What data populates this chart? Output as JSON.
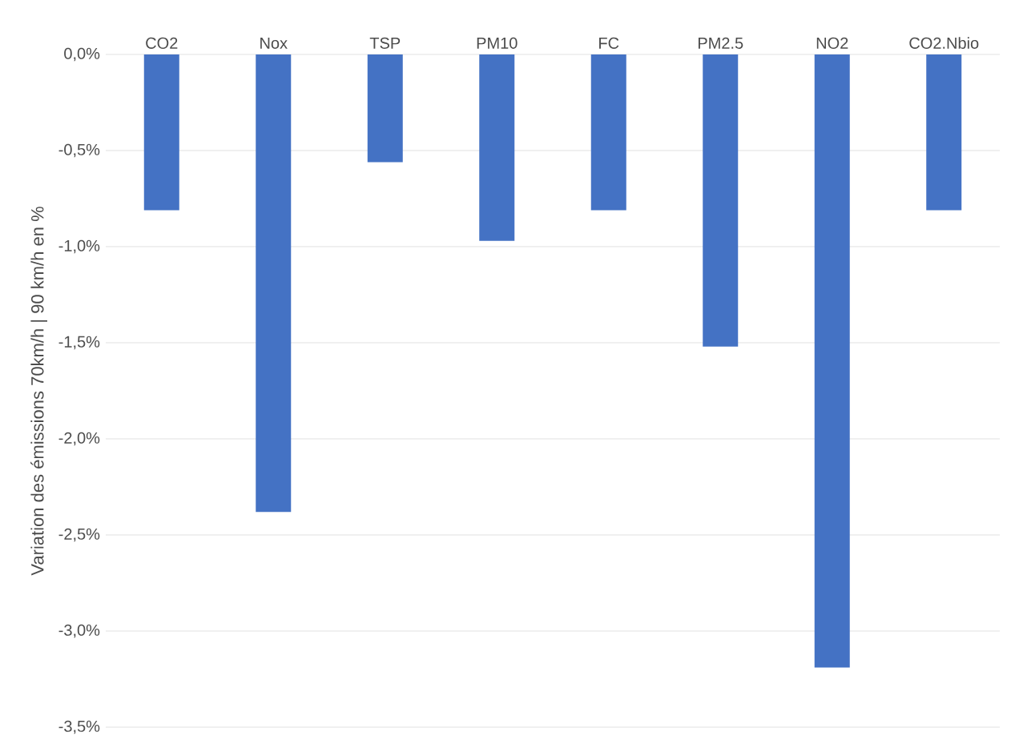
{
  "chart_data": {
    "type": "bar",
    "ylabel": "Variation des émissions 70km/h | 90 km/h en %",
    "categories": [
      "CO2",
      "Nox",
      "TSP",
      "PM10",
      "FC",
      "PM2.5",
      "NO2",
      "CO2.Nbio"
    ],
    "values": [
      -0.81,
      -2.38,
      -0.56,
      -0.97,
      -0.81,
      -1.52,
      -3.19,
      -0.81
    ],
    "color": "#4472c4",
    "ylim": [
      -3.5,
      0
    ],
    "yticks": [
      {
        "value": 0,
        "label": "0,0%"
      },
      {
        "value": -0.5,
        "label": "-0,5%"
      },
      {
        "value": -1.0,
        "label": "-1,0%"
      },
      {
        "value": -1.5,
        "label": "-1,5%"
      },
      {
        "value": -2.0,
        "label": "-2,0%"
      },
      {
        "value": -2.5,
        "label": "-2,5%"
      },
      {
        "value": -3.0,
        "label": "-3,0%"
      },
      {
        "value": -3.5,
        "label": "-3,5%"
      }
    ],
    "grid": "y"
  }
}
